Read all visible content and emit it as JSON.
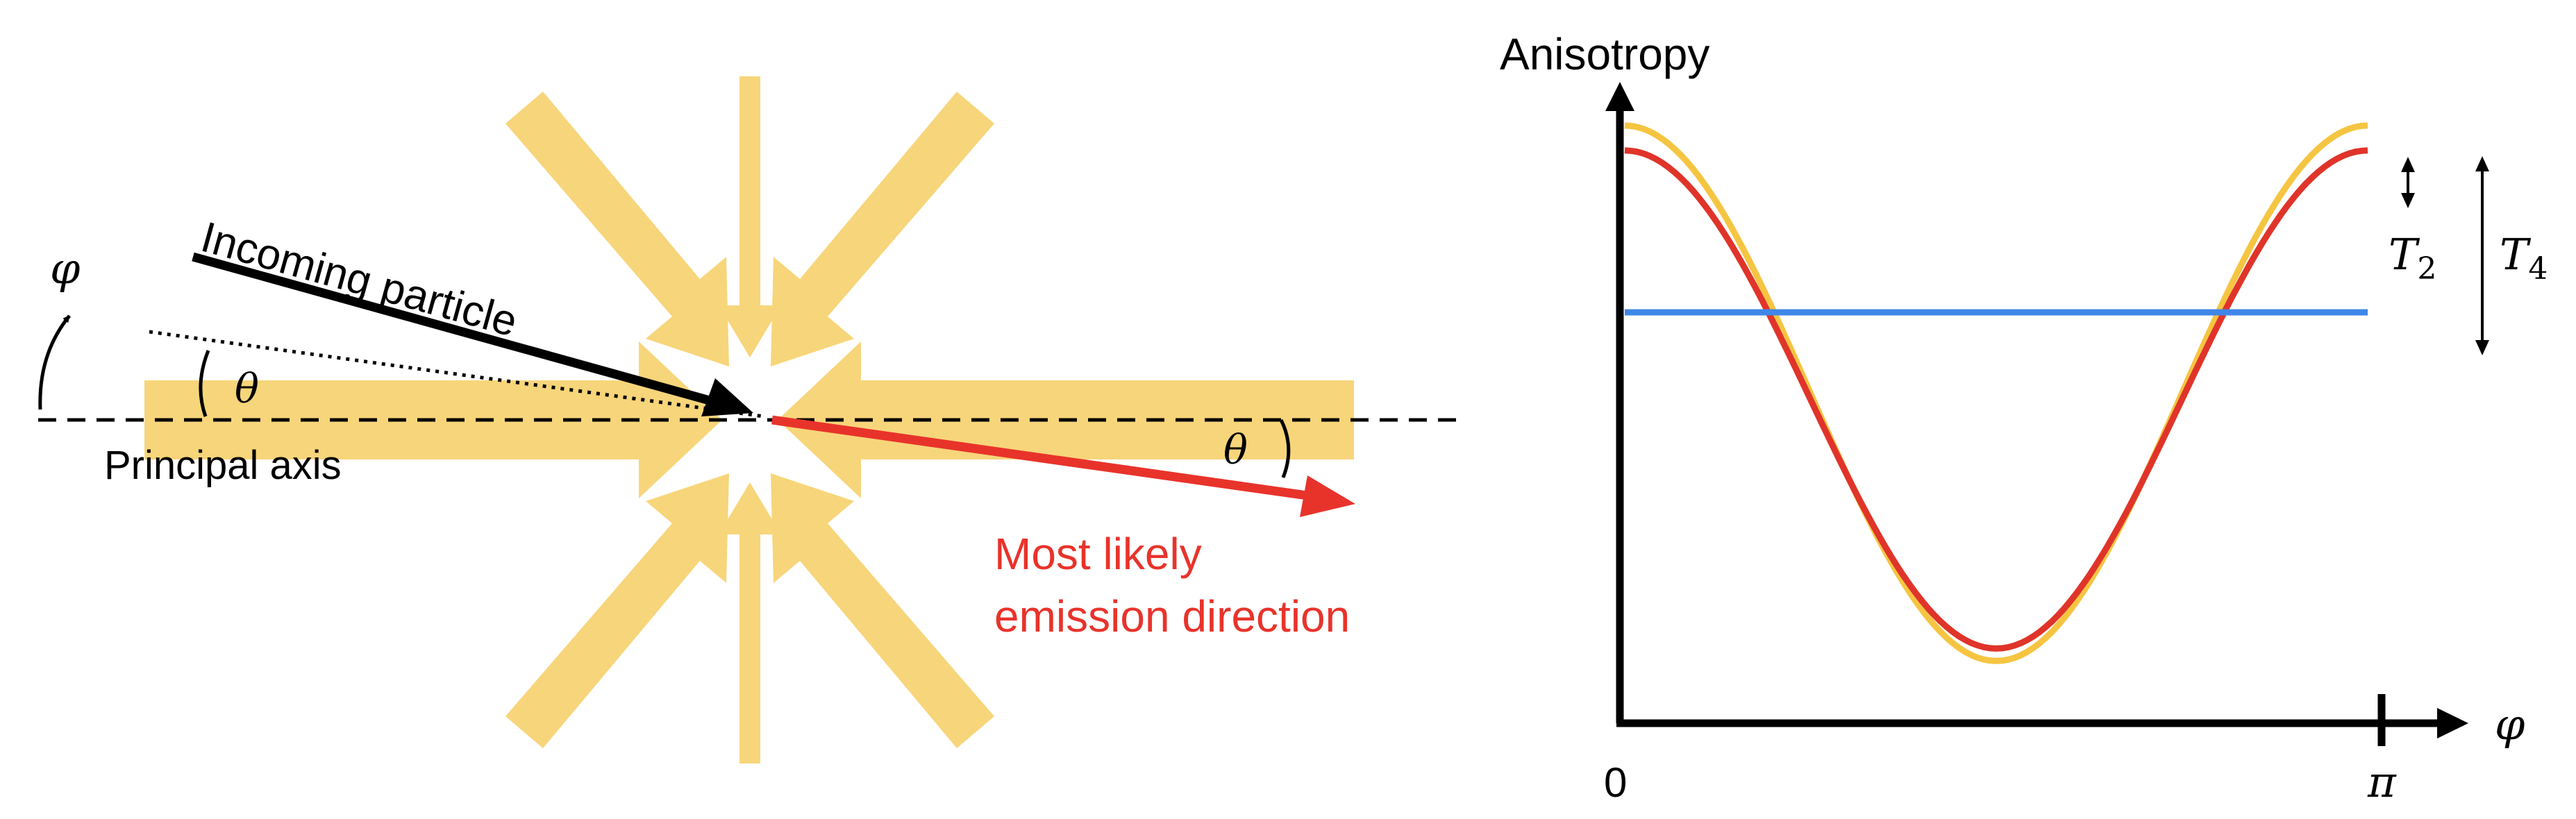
{
  "left_diagram": {
    "incoming_label": "Incoming particle",
    "principal_axis_label": "Principal axis",
    "theta_symbol": "θ",
    "phi_symbol": "φ",
    "emission_label_line1": "Most likely",
    "emission_label_line2": "emission direction",
    "emission_color": "#e8332b",
    "beam_color": "#f7d57a",
    "incoming_color": "#000000"
  },
  "right_chart": {
    "y_axis_label": "Anisotropy",
    "x_axis_symbol": "φ",
    "x_tick_start": "0",
    "x_tick_end": "π",
    "t2_symbol": "T",
    "t2_subscript": "2",
    "t4_symbol": "T",
    "t4_subscript": "4"
  },
  "chart_data": {
    "type": "line",
    "title": "",
    "ylabel": "Anisotropy",
    "xlabel": "φ",
    "x_ticks": [
      "0",
      "π"
    ],
    "series": [
      {
        "color": "#f5c542",
        "curve": "cosine",
        "min": 0.1,
        "max": 0.96
      },
      {
        "color": "#e0342a",
        "curve": "cosine",
        "min": 0.12,
        "max": 0.92
      },
      {
        "color": "#3f86e8",
        "curve": "constant",
        "value": 0.66
      }
    ]
  }
}
